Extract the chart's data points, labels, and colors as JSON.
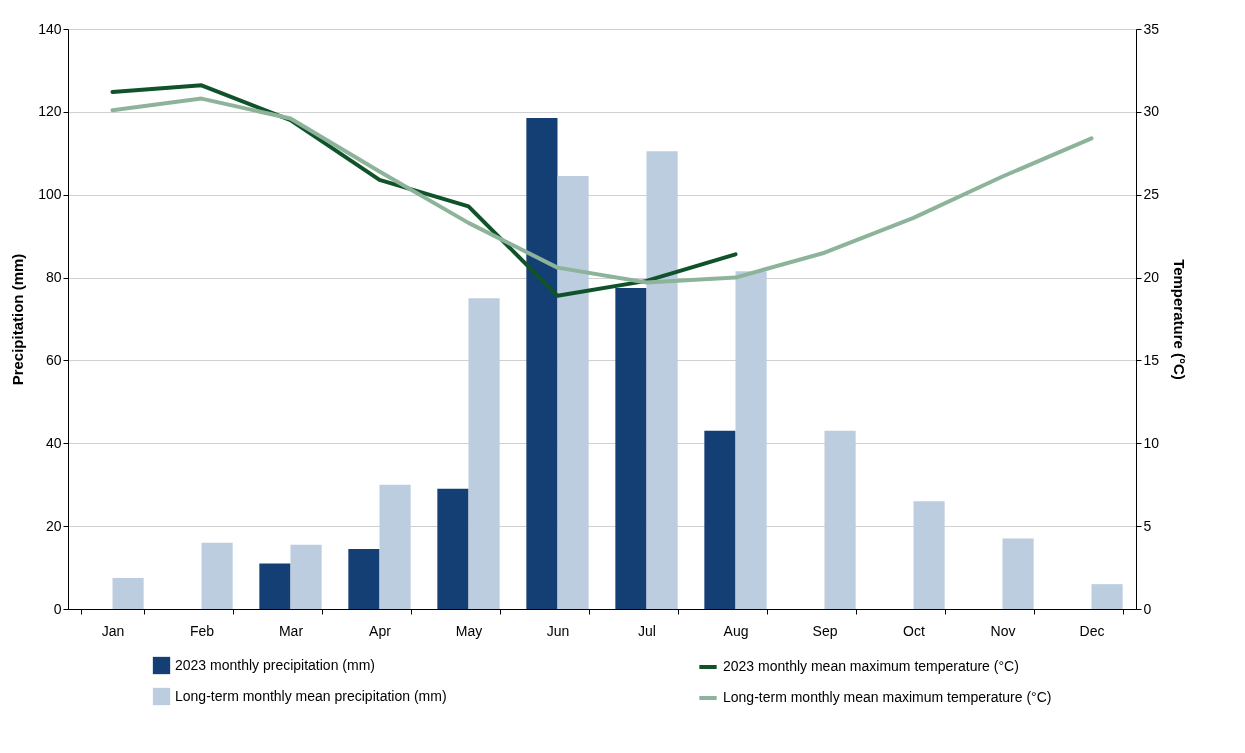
{
  "chart_data": {
    "type": "bar",
    "ylabel": "Precipitation (mm)",
    "y2label": "Temperature (°C)",
    "categories": [
      "Jan",
      "Feb",
      "Mar",
      "Apr",
      "May",
      "Jun",
      "Jul",
      "Aug",
      "Sep",
      "Oct",
      "Nov",
      "Dec"
    ],
    "series": [
      {
        "name": "2023 monthly precipitation (mm)",
        "color": "#133f74",
        "values": [
          null,
          null,
          11,
          14.5,
          29,
          118.5,
          77.5,
          43,
          null,
          null,
          null,
          null
        ]
      },
      {
        "name": "Long-term monthly mean precipitation (mm)",
        "color": "#bccddf",
        "values": [
          7.5,
          16,
          15.5,
          30,
          75,
          104.5,
          110.5,
          81.5,
          43,
          26,
          17,
          6
        ]
      },
      {
        "name": "2023 monthly mean maximum temperature (°C)",
        "type": "line",
        "axis": "y2",
        "color": "#10532a",
        "values": [
          31.2,
          31.6,
          29.5,
          25.9,
          24.3,
          18.9,
          19.8,
          21.4,
          null,
          null,
          null,
          null
        ]
      },
      {
        "name": "Long-term monthly mean maximum temperature (°C)",
        "type": "line",
        "axis": "y2",
        "color": "#8db49b",
        "values": [
          30.1,
          30.8,
          29.6,
          26.4,
          23.3,
          20.6,
          19.7,
          20.0,
          21.5,
          23.6,
          26.1,
          28.4
        ]
      }
    ],
    "ylim": [
      0,
      140
    ],
    "yticks": [
      0,
      20,
      40,
      60,
      80,
      100,
      120,
      140
    ],
    "y2lim": [
      0,
      35
    ],
    "y2ticks": [
      0,
      5,
      10,
      15,
      20,
      25,
      30,
      35
    ],
    "grid": "y",
    "legend": "bottom"
  }
}
